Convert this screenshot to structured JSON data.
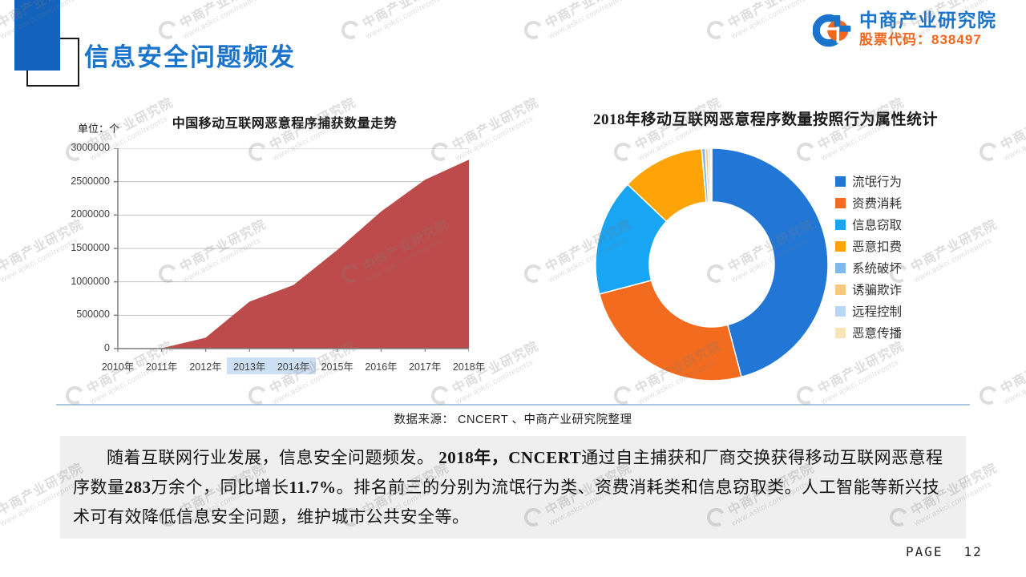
{
  "header": {
    "title": "信息安全问题频发",
    "logo": {
      "name": "中商产业研究院",
      "stock": "股票代码：838497"
    }
  },
  "watermark": {
    "line1": "中商产业研究院",
    "line2": "www.askci.com/reports"
  },
  "source_line": "数据来源： CNCERT 、中商产业研究院整理",
  "paragraph": {
    "segments": [
      {
        "text": "随着互联网行业发展，信息安全问题频发。 ",
        "bold": false
      },
      {
        "text": "2018年，CNCERT",
        "bold": true
      },
      {
        "text": "通过自主捕获和厂商交换获得移动互联网恶意程序数量",
        "bold": false
      },
      {
        "text": "283",
        "bold": true
      },
      {
        "text": "万余个，同比增长",
        "bold": false
      },
      {
        "text": "11.7%",
        "bold": true
      },
      {
        "text": "。排名前三的分别为流氓行为类、资费消耗类和信息窃取类。人工智能等新兴技术可有效降低信息安全问题，维护城市公共安全等。",
        "bold": false
      }
    ]
  },
  "footer": {
    "page_label": "PAGE",
    "page_number": "12"
  },
  "colors": {
    "brand_blue": "#1b74cc",
    "brand_orange": "#f2661e",
    "accent_square": "#1362bc",
    "divider": "#a9c6e3",
    "summary_bg": "#efefef",
    "axis": "#7f7f7f",
    "gridline": "#c3c3c3",
    "xlabel_highlight": "#cddff2"
  },
  "chart_data": [
    {
      "type": "area",
      "title": "中国移动互联网恶意程序捕获数量走势",
      "unit_label": "单位：个",
      "categories": [
        "2010年",
        "2011年",
        "2012年",
        "2013年",
        "2014年",
        "2015年",
        "2016年",
        "2017年",
        "2018年"
      ],
      "values": [
        6673,
        6249,
        162981,
        703259,
        951059,
        1477450,
        2053501,
        2530000,
        2830000
      ],
      "ylim": [
        0,
        3000000
      ],
      "yticks": [
        "3000000",
        "2500000",
        "2000000",
        "1500000",
        "1000000",
        "500000",
        "0"
      ],
      "grid": true,
      "area_color": "#be4b4b",
      "highlight_indices": [
        3,
        4
      ]
    },
    {
      "type": "donut",
      "title": "2018年移动互联网恶意程序数量按照行为属性统计",
      "legend_position": "right",
      "unit": "%",
      "series": [
        {
          "name": "流氓行为",
          "value": 45.9,
          "color": "#2176d6"
        },
        {
          "name": "资费消耗",
          "value": 25.0,
          "color": "#f36b1e"
        },
        {
          "name": "信息窃取",
          "value": 16.2,
          "color": "#18a5f3"
        },
        {
          "name": "恶意扣费",
          "value": 11.5,
          "color": "#ffa408"
        },
        {
          "name": "系统破坏",
          "value": 0.5,
          "color": "#7db8ee"
        },
        {
          "name": "诱骗欺诈",
          "value": 0.4,
          "color": "#fac97e"
        },
        {
          "name": "远程控制",
          "value": 0.3,
          "color": "#b9d7f5"
        },
        {
          "name": "恶意传播",
          "value": 0.2,
          "color": "#fae3b5"
        }
      ]
    }
  ]
}
